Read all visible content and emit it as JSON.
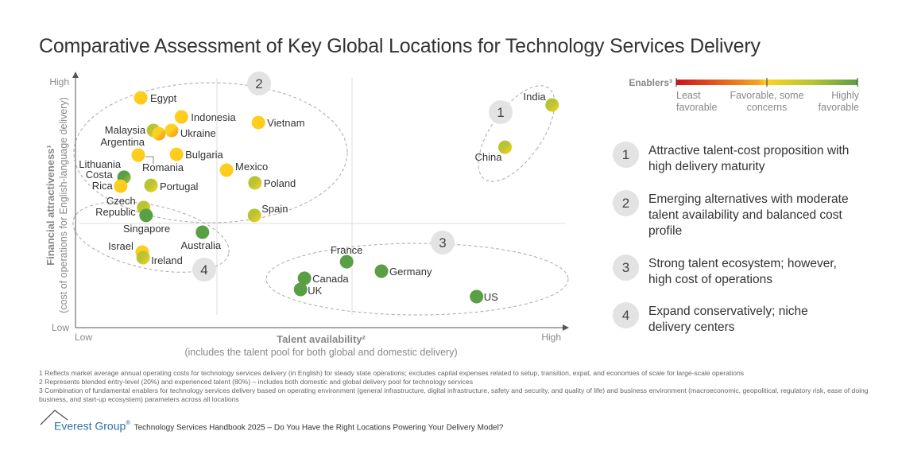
{
  "title": "Comparative Assessment of Key Global Locations for Technology Services Delivery",
  "chart_data": {
    "type": "scatter",
    "title": "Comparative Assessment of Key Global Locations for Technology Services Delivery",
    "xlabel": "Talent availability²",
    "xlabel_sub": "(includes the talent pool for both global and domestic delivery)",
    "ylabel": "Financial attractiveness¹",
    "ylabel_sub": "(cost of operations for English-language delivery)",
    "x_ticks": [
      "Low",
      "High"
    ],
    "y_ticks": [
      "Low",
      "High"
    ],
    "xlim": [
      0,
      100
    ],
    "ylim": [
      0,
      100
    ],
    "grid": false,
    "color_scale": {
      "title": "Enablers³",
      "low_label": "Least favorable",
      "mid_label": "Favorable, some concerns",
      "high_label": "Highly favorable",
      "colors": [
        "#d0121b",
        "#f08a1e",
        "#fdd21f",
        "#b8c434",
        "#5a9e45"
      ]
    },
    "points": [
      {
        "name": "Egypt",
        "x": 13.3,
        "y": 90.3,
        "enablers": 0.5
      },
      {
        "name": "Indonesia",
        "x": 21.6,
        "y": 82.8,
        "enablers": 0.5
      },
      {
        "name": "Vietnam",
        "x": 37.3,
        "y": 80.6,
        "enablers": 0.5
      },
      {
        "name": "Malaysia",
        "x": 15.9,
        "y": 77.5,
        "enablers": 0.7
      },
      {
        "name": "",
        "x": 17.0,
        "y": 76.2,
        "enablers": 0.3
      },
      {
        "name": "Ukraine",
        "x": 19.6,
        "y": 77.5,
        "enablers": 0.25
      },
      {
        "name": "Argentina",
        "x": 12.8,
        "y": 67.8,
        "enablers": 0.5
      },
      {
        "name": "Romania",
        "x": 12.8,
        "y": 67.8,
        "enablers": 0.5
      },
      {
        "name": "Bulgaria",
        "x": 20.6,
        "y": 68.1,
        "enablers": 0.5
      },
      {
        "name": "Mexico",
        "x": 30.8,
        "y": 61.9,
        "enablers": 0.5
      },
      {
        "name": "Lithuania",
        "x": 9.9,
        "y": 59.1,
        "enablers": 0.75
      },
      {
        "name": "Costa Rica",
        "x": 9.2,
        "y": 55.6,
        "enablers": 0.5
      },
      {
        "name": "Portugal",
        "x": 15.4,
        "y": 55.9,
        "enablers": 0.7
      },
      {
        "name": "Poland",
        "x": 36.6,
        "y": 56.9,
        "enablers": 0.7
      },
      {
        "name": "Czech Republic",
        "x": 13.9,
        "y": 47.2,
        "enablers": 0.7
      },
      {
        "name": "Singapore",
        "x": 14.4,
        "y": 44.1,
        "enablers": 1.0
      },
      {
        "name": "Spain",
        "x": 36.5,
        "y": 44.1,
        "enablers": 0.7
      },
      {
        "name": "Australia",
        "x": 25.9,
        "y": 37.5,
        "enablers": 1.0
      },
      {
        "name": "Israel",
        "x": 13.6,
        "y": 29.7,
        "enablers": 0.5
      },
      {
        "name": "Ireland",
        "x": 13.8,
        "y": 27.5,
        "enablers": 0.7
      },
      {
        "name": "France",
        "x": 55.3,
        "y": 25.9,
        "enablers": 1.0
      },
      {
        "name": "Germany",
        "x": 62.4,
        "y": 22.2,
        "enablers": 1.0
      },
      {
        "name": "Canada",
        "x": 46.7,
        "y": 19.4,
        "enablers": 1.0
      },
      {
        "name": "UK",
        "x": 45.9,
        "y": 15.0,
        "enablers": 1.0
      },
      {
        "name": "US",
        "x": 81.8,
        "y": 12.2,
        "enablers": 1.0
      },
      {
        "name": "India",
        "x": 97.2,
        "y": 87.5,
        "enablers": 0.7
      },
      {
        "name": "China",
        "x": 87.6,
        "y": 70.9,
        "enablers": 0.7
      }
    ],
    "clusters": [
      {
        "id": "1",
        "text": "Attractive talent-cost proposition with high delivery maturity"
      },
      {
        "id": "2",
        "text": "Emerging alternatives with moderate talent availability and balanced cost profile"
      },
      {
        "id": "3",
        "text": "Strong talent ecosystem; however, high cost of operations"
      },
      {
        "id": "4",
        "text": "Expand conservatively; niche delivery centers"
      }
    ]
  },
  "footnotes": [
    "1 Reflects market average annual operating costs for technology services delivery (in English) for steady state operations; excludes capital expenses related to setup, transition, expat, and economies of scale for large-scale operations",
    "2 Represents blended entry-level (20%) and experienced talent (80%) – includes both domestic and global delivery pool for technology services",
    "3 Combination of fundamental enablers for technology services delivery based on operating environment (general infrastructure, digital infrastructure, safety and security, and quality of life) and business environment (macroeconomic, geopolitical, regulatory risk, ease of doing business, and start-up ecosystem) parameters across all locations"
  ],
  "footer": {
    "brand": "Everest Group",
    "reg": "®",
    "text": "Technology Services Handbook 2025 – Do You Have the Right Locations Powering Your Delivery Model?"
  }
}
